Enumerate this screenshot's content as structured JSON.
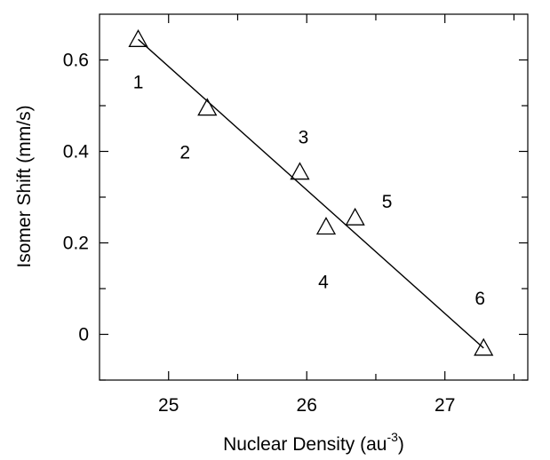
{
  "chart_data": {
    "type": "scatter",
    "xlabel": "Nuclear Density (au",
    "xlabel_sup": "-3",
    "xlabel_close": ")",
    "ylabel": "Isomer Shift (mm/s)",
    "xlim": [
      24.5,
      27.6
    ],
    "ylim": [
      -0.1,
      0.7
    ],
    "x_ticks_labeled": [
      25,
      26,
      27
    ],
    "x_tick_labels": [
      "25",
      "26",
      "27"
    ],
    "x_ticks_minor": [
      25.5,
      26.5,
      27.5
    ],
    "y_ticks_labeled": [
      0,
      0.2,
      0.4,
      0.6
    ],
    "y_tick_labels": [
      "0",
      "0.2",
      "0.4",
      "0.6"
    ],
    "y_ticks_minor": [
      -0.1,
      0.1,
      0.3,
      0.5
    ],
    "grid": false,
    "legend": "none",
    "marker": "open-triangle",
    "points": [
      {
        "label": "1",
        "x": 24.78,
        "y": 0.645
      },
      {
        "label": "2",
        "x": 25.28,
        "y": 0.495
      },
      {
        "label": "3",
        "x": 25.95,
        "y": 0.355
      },
      {
        "label": "4",
        "x": 26.14,
        "y": 0.235
      },
      {
        "label": "5",
        "x": 26.35,
        "y": 0.255
      },
      {
        "label": "6",
        "x": 27.28,
        "y": -0.03
      }
    ],
    "fit_line": {
      "x": [
        24.78,
        27.28
      ],
      "y": [
        0.645,
        -0.03
      ]
    }
  }
}
